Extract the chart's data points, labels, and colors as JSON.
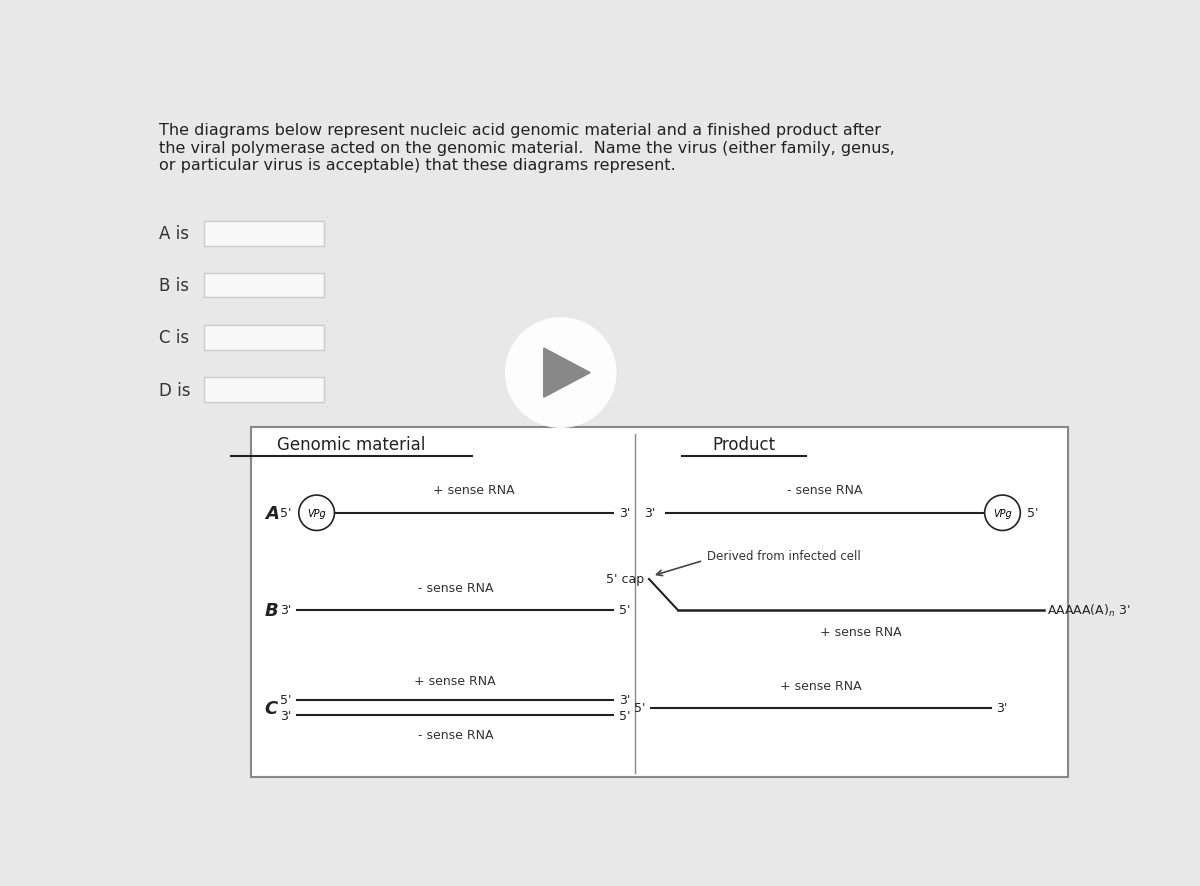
{
  "title_text": "The diagrams below represent nucleic acid genomic material and a finished product after\nthe viral polymerase acted on the genomic material.  Name the virus (either family, genus,\nor particular virus is acceptable) that these diagrams represent.",
  "labels_left": [
    "A is",
    "B is",
    "C is",
    "D is"
  ],
  "section_header_left": "Genomic material",
  "section_header_right": "Product",
  "bg_color": "#e8e8e8",
  "panel_bg": "#ffffff",
  "text_color": "#333333",
  "line_color": "#222222",
  "row_A": {
    "genomic_label": "+ sense RNA",
    "genomic_left_end": "5'",
    "genomic_right_end": "3'",
    "genomic_left_circle": "VPg",
    "product_label": "- sense RNA",
    "product_left_end": "3'",
    "product_right_end": "5'",
    "product_right_circle": "VPg"
  },
  "row_B": {
    "genomic_label": "- sense RNA",
    "genomic_left_end": "3'",
    "genomic_right_end": "5'",
    "product_cap_label": "5' cap",
    "product_annotation": "Derived from infected cell",
    "product_bottom_label": "+ sense RNA",
    "product_right_end": "AAAAA(A)"
  },
  "row_C": {
    "genomic_top_label": "+ sense RNA",
    "genomic_bottom_label": "- sense RNA",
    "genomic_top_left": "5'",
    "genomic_top_right": "3'",
    "genomic_bottom_left": "3'",
    "genomic_bottom_right": "5'",
    "product_label": "+ sense RNA",
    "product_left_end": "5'",
    "product_right_end": "3'"
  }
}
